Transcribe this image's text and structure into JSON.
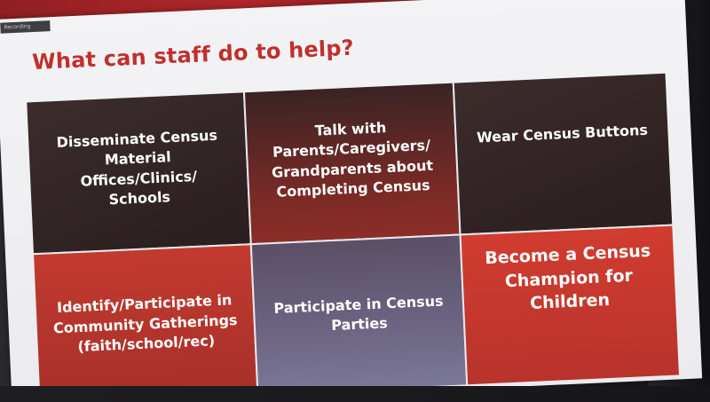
{
  "window": {
    "meeting_tag": "Recording"
  },
  "slide": {
    "title": "What can staff do to help?",
    "tiles": [
      {
        "text": "Disseminate Census\nMaterial Offices/Clinics/\nSchools"
      },
      {
        "text": "Talk with\nParents/Caregivers/\nGrandparents about\nCompleting Census"
      },
      {
        "text": "Wear Census Buttons"
      },
      {
        "text": "Identify/Participate in\nCommunity Gatherings\n(faith/school/rec)"
      },
      {
        "text": "Participate in Census\nParties"
      },
      {
        "text": "Become a Census\nChampion for\nChildren"
      }
    ]
  },
  "colors": {
    "title_red": "#c0302c",
    "tile_dark": "#2f2222",
    "tile_red": "#c33a2f",
    "tile_purple": "#6c6583"
  }
}
